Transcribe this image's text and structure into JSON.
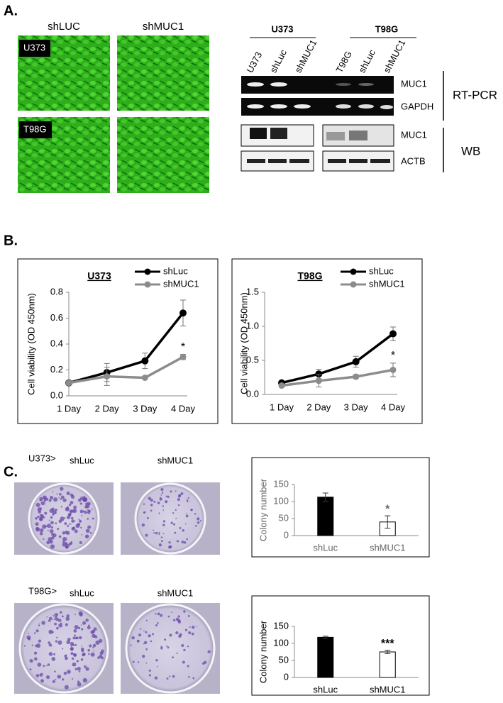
{
  "panel_labels": [
    "A.",
    "B.",
    "C."
  ],
  "panel_a": {
    "image_columns": [
      "shLUC",
      "shMUC1"
    ],
    "image_rows": [
      "U373",
      "T98G"
    ],
    "gel_groups": [
      "U373",
      "T98G"
    ],
    "lanes": [
      "U373",
      "shLuc",
      "shMUC1",
      "T98G",
      "shLuc",
      "shMUC1"
    ],
    "bands": [
      "MUC1",
      "GAPDH",
      "MUC1",
      "ACTB"
    ],
    "methods": [
      "RT-PCR",
      "WB"
    ]
  },
  "panel_c": {
    "rows": [
      {
        "cell_line": "U373>",
        "columns": [
          "shLuc",
          "shMUC1"
        ]
      },
      {
        "cell_line": "T98G>",
        "columns": [
          "shLuc",
          "shMUC1"
        ]
      }
    ]
  },
  "chart_data": [
    {
      "type": "line",
      "title": "U373",
      "y_label": "Cell viability (OD 450nm)",
      "categories": [
        "1 Day",
        "2 Day",
        "3 Day",
        "4 Day"
      ],
      "series": [
        {
          "name": "shLuc",
          "color": "#000000",
          "values": [
            0.1,
            0.18,
            0.27,
            0.64
          ],
          "errors": [
            0.01,
            0.07,
            0.06,
            0.1
          ]
        },
        {
          "name": "shMUC1",
          "color": "#8c8c8c",
          "values": [
            0.1,
            0.15,
            0.14,
            0.3
          ],
          "errors": [
            0.01,
            0.07,
            0.01,
            0.02
          ]
        }
      ],
      "ylim": [
        0,
        0.8
      ],
      "yticks": [
        {
          "value": 0,
          "label": "0.0"
        },
        0.2,
        0.4,
        0.6,
        0.8
      ],
      "annotation": "*"
    },
    {
      "type": "line",
      "title": "T98G",
      "y_label": "Cell viability (OD 450nm)",
      "categories": [
        "1 Day",
        "2 Day",
        "3 Day",
        "4 Day"
      ],
      "series": [
        {
          "name": "shLuc",
          "color": "#000000",
          "values": [
            0.17,
            0.3,
            0.48,
            0.89
          ],
          "errors": [
            0.02,
            0.07,
            0.08,
            0.1
          ]
        },
        {
          "name": "shMUC1",
          "color": "#8c8c8c",
          "values": [
            0.13,
            0.2,
            0.26,
            0.36
          ],
          "errors": [
            0.02,
            0.09,
            0.03,
            0.1
          ]
        }
      ],
      "ylim": [
        0,
        1.5
      ],
      "yticks": [
        {
          "value": 0,
          "label": "0.0"
        },
        0.5,
        {
          "value": 1,
          "label": "1.0"
        },
        1.5
      ],
      "annotation": "*"
    },
    {
      "type": "bar",
      "y_label": "Colony number",
      "categories": [
        "shLuc",
        "shMUC1"
      ],
      "values": [
        113,
        40
      ],
      "errors": [
        12,
        18
      ],
      "colors": [
        "#000000",
        "#ffffff"
      ],
      "ylim": [
        0,
        150
      ],
      "yticks": [
        0,
        50,
        100,
        150
      ],
      "annotation": "*"
    },
    {
      "type": "bar",
      "y_label": "Colony number",
      "categories": [
        "shLuc",
        "shMUC1"
      ],
      "values": [
        118,
        75
      ],
      "errors": [
        3,
        5
      ],
      "colors": [
        "#000000",
        "#ffffff"
      ],
      "ylim": [
        0,
        150
      ],
      "yticks": [
        0,
        50,
        100,
        150
      ],
      "annotation": "***"
    }
  ]
}
